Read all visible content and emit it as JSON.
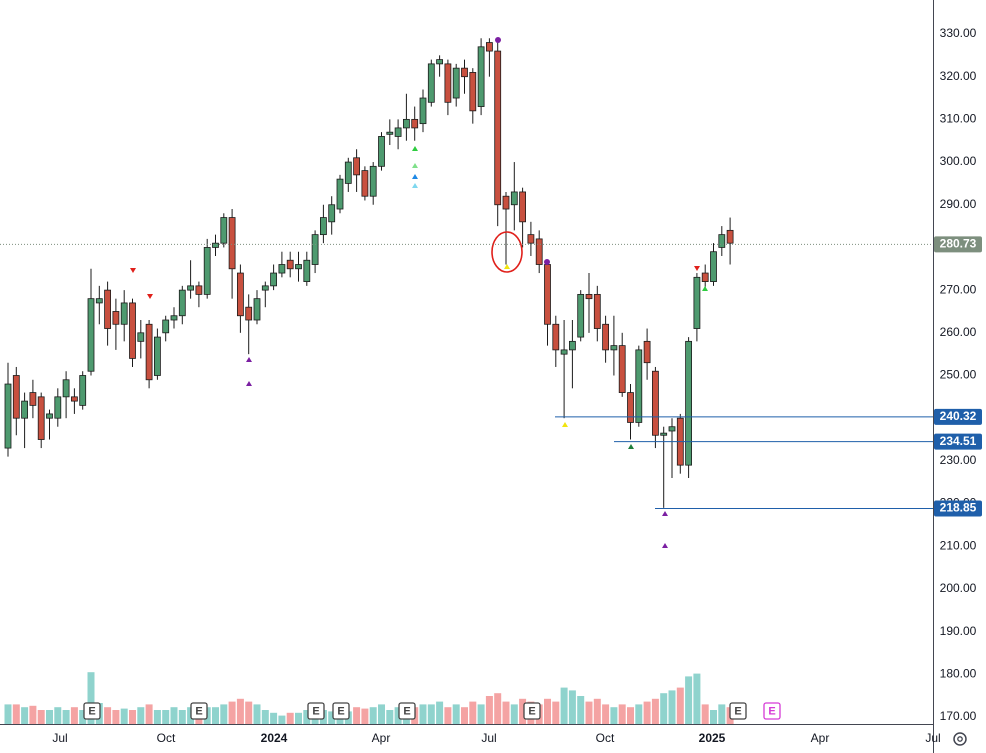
{
  "chart_data": {
    "type": "candlestick",
    "up_color": "#4e9a6f",
    "down_color": "#c8503f",
    "outline_color": "#1b1b1b",
    "volume_up_color": "#8fd3cd",
    "volume_down_color": "#f4a3a3",
    "level_color": "#1f5faa",
    "last_color": "#7d8f7e",
    "open": [
      233,
      250,
      240,
      246,
      245,
      240,
      240,
      245,
      245,
      243,
      251,
      267,
      270,
      265,
      262,
      267,
      258,
      262,
      250,
      260,
      263,
      264,
      270,
      271,
      269,
      280,
      281,
      287,
      274,
      266,
      263,
      270,
      271,
      274,
      277,
      275,
      272,
      276,
      283,
      286,
      289,
      295,
      301,
      298,
      292,
      299,
      306.5,
      306,
      308,
      310,
      309,
      314,
      323,
      323,
      315,
      322,
      321,
      313,
      328,
      326,
      292,
      290,
      293,
      283,
      282,
      276,
      262,
      255,
      256,
      259,
      269,
      269,
      262,
      256,
      257,
      246,
      239,
      258,
      251,
      236,
      237,
      240,
      229,
      261,
      274,
      272,
      280,
      284
    ],
    "high": [
      253,
      252,
      246,
      249,
      246,
      242,
      247,
      251,
      247,
      251,
      275,
      271,
      272,
      268,
      270,
      268,
      263,
      263,
      261,
      264,
      266,
      271,
      277,
      272,
      282,
      283,
      288,
      289,
      276,
      269,
      270,
      272,
      276,
      279,
      279,
      279,
      279,
      284,
      290,
      292,
      297,
      301,
      303,
      299,
      300,
      307,
      310,
      310,
      316,
      313,
      317,
      324,
      325,
      324,
      323,
      324,
      322,
      329,
      329,
      329,
      293,
      300,
      294,
      286,
      284,
      277,
      264,
      263,
      263,
      270,
      274,
      271,
      264,
      264,
      260,
      248,
      257,
      261,
      252,
      238,
      240,
      241,
      259,
      274,
      276,
      281,
      285,
      287
    ],
    "low": [
      231,
      236,
      233,
      240,
      233,
      235,
      238,
      240,
      241,
      242,
      250,
      262,
      257,
      256,
      258,
      252,
      254,
      247,
      249,
      258,
      261,
      262,
      268,
      266,
      268,
      278,
      280,
      268,
      260,
      255,
      262,
      266,
      270,
      273,
      273,
      272,
      271,
      274,
      281,
      283,
      288,
      293,
      293,
      291,
      290,
      298,
      304,
      303,
      305,
      305,
      307,
      313,
      320,
      311,
      313,
      316,
      309,
      311,
      320,
      285,
      276,
      284,
      280,
      278,
      274,
      257,
      252,
      240,
      247,
      258,
      260,
      258,
      253,
      250,
      245,
      235,
      238,
      249,
      233,
      219,
      226,
      227,
      226,
      258,
      270,
      271,
      278,
      276
    ],
    "close": [
      248,
      240,
      244,
      243,
      235,
      241,
      245,
      249,
      244,
      250,
      268,
      268,
      261,
      262,
      267,
      254,
      260,
      249,
      259,
      263,
      264,
      270,
      271,
      269,
      280,
      281,
      287,
      275,
      264,
      263,
      268,
      271,
      274,
      276,
      275,
      276,
      277,
      283,
      287,
      290,
      296,
      300,
      297,
      292,
      299,
      306,
      307,
      308,
      310,
      308,
      315,
      323,
      324,
      314,
      322,
      320,
      312,
      327,
      326,
      290,
      289,
      293,
      286,
      281,
      276,
      262,
      256,
      256,
      258,
      269,
      268,
      261,
      256,
      257,
      246,
      239,
      256,
      253,
      236,
      236.5,
      238,
      229,
      258,
      273,
      272,
      279,
      283,
      281
    ],
    "volume": [
      14,
      14,
      12,
      13,
      10,
      10,
      12,
      10,
      12,
      10,
      37,
      15,
      12,
      10,
      11,
      10,
      12,
      14,
      10,
      10,
      12,
      10,
      12,
      10,
      12,
      12,
      14,
      16,
      18,
      16,
      14,
      10,
      8,
      6,
      8,
      8,
      10,
      10,
      10,
      9,
      10,
      9,
      12,
      11,
      12,
      14,
      10,
      12,
      14,
      12,
      14,
      14,
      16,
      12,
      14,
      12,
      16,
      14,
      20,
      22,
      16,
      14,
      18,
      16,
      14,
      18,
      16,
      26,
      24,
      20,
      16,
      18,
      14,
      12,
      14,
      12,
      14,
      16,
      18,
      22,
      24,
      26,
      34,
      36,
      14,
      10,
      14,
      12
    ],
    "ylim": [
      170,
      330
    ],
    "yticks": [
      {
        "value": 170,
        "label": "170.00"
      },
      {
        "value": 180,
        "label": "180.00"
      },
      {
        "value": 190,
        "label": "190.00"
      },
      {
        "value": 200,
        "label": "200.00"
      },
      {
        "value": 210,
        "label": "210.00"
      },
      {
        "value": 220,
        "label": "220.00"
      },
      {
        "value": 230,
        "label": "230.00"
      },
      {
        "value": 240,
        "label": "240.00"
      },
      {
        "value": 250,
        "label": "250.00"
      },
      {
        "value": 260,
        "label": "260.00"
      },
      {
        "value": 270,
        "label": "270.00"
      },
      {
        "value": 280,
        "label": "280.00"
      },
      {
        "value": 290,
        "label": "290.00"
      },
      {
        "value": 300,
        "label": "300.00"
      },
      {
        "value": 310,
        "label": "310.00"
      },
      {
        "value": 320,
        "label": "320.00"
      },
      {
        "value": 330,
        "label": "330.00"
      }
    ],
    "x_labels": [
      "Jul",
      "Oct",
      "2024",
      "Apr",
      "Jul",
      "Oct",
      "2025",
      "Apr",
      "Jul"
    ],
    "last_price": {
      "value": 280.73,
      "label": "280.73"
    },
    "levels": [
      {
        "value": 240.32,
        "label": "240.32"
      },
      {
        "value": 234.51,
        "label": "234.51"
      },
      {
        "value": 218.85,
        "label": "218.85"
      }
    ],
    "earnings": [
      "E",
      "E",
      "E",
      "E",
      "E",
      "E",
      "E",
      "E"
    ]
  }
}
